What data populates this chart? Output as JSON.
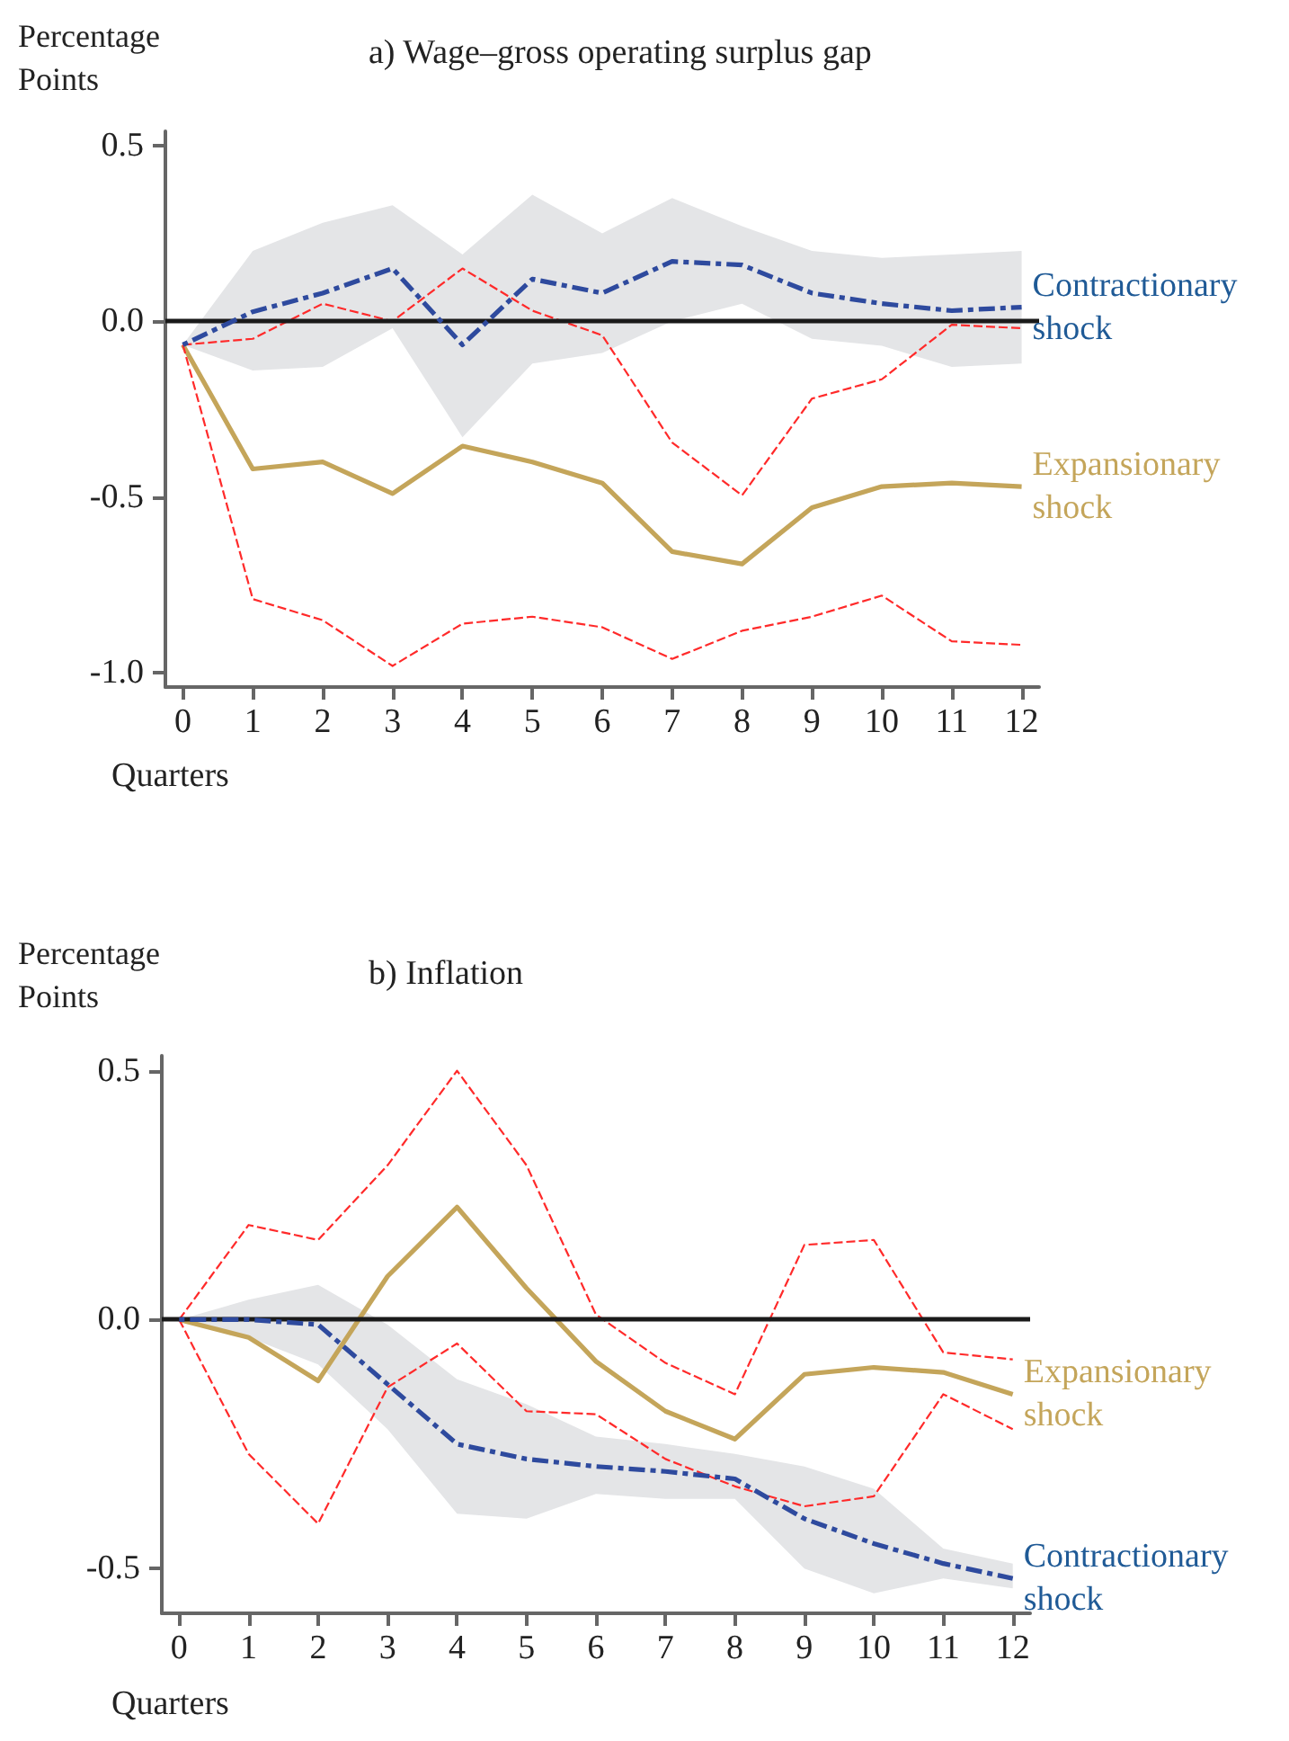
{
  "chart_data": [
    {
      "type": "line",
      "title": "a) Wage–gross operating surplus gap",
      "ylabel": "Percentage Points",
      "xlabel": "Quarters",
      "x": [
        0,
        1,
        2,
        3,
        4,
        5,
        6,
        7,
        8,
        9,
        10,
        11,
        12
      ],
      "xlim": [
        -0.25,
        12.25
      ],
      "xticks": [
        0,
        1,
        2,
        3,
        4,
        5,
        6,
        7,
        8,
        9,
        10,
        11,
        12
      ],
      "ylim": [
        -1.04,
        0.54
      ],
      "yticks": [
        {
          "value": -1,
          "label": "-1.0"
        },
        {
          "value": -0.5,
          "label": "-0.5"
        },
        {
          "value": 0,
          "label": "0.0"
        },
        {
          "value": 0.5,
          "label": "0.5"
        }
      ],
      "grid": false,
      "legend": false,
      "marker": "none",
      "ref_lines": [
        {
          "axis": "y",
          "value": 0,
          "color": "#1a1a1a"
        }
      ],
      "series": [
        {
          "color": "#ff2a2a",
          "line_style": "dashed",
          "values": [
            -0.067,
            -0.05,
            0.05,
            0,
            0.15,
            0.03,
            -0.04,
            -0.345,
            -0.495,
            -0.22,
            -0.165,
            -0.01,
            -0.02
          ]
        },
        {
          "color": "#ff2a2a",
          "line_style": "dashed",
          "values": [
            -0.067,
            -0.79,
            -0.85,
            -0.98,
            -0.86,
            -0.84,
            -0.87,
            -0.96,
            -0.88,
            -0.84,
            -0.78,
            -0.91,
            -0.92
          ]
        },
        {
          "name": "Expansionary shock",
          "color": "#c4a55a",
          "line_style": "solid",
          "values": [
            -0.067,
            -0.42,
            -0.4,
            -0.49,
            -0.355,
            -0.4,
            -0.46,
            -0.655,
            -0.69,
            -0.53,
            -0.47,
            -0.46,
            -0.47
          ]
        },
        {
          "name": "Contractionary shock",
          "color": "#2e4a9e",
          "line_style": "dashed",
          "values": [
            -0.067,
            0.027,
            0.08,
            0.15,
            -0.067,
            0.12,
            0.08,
            0.17,
            0.16,
            0.08,
            0.05,
            0.03,
            0.04
          ],
          "lower": [
            -0.067,
            -0.14,
            -0.13,
            -0.02,
            -0.33,
            -0.12,
            -0.09,
            0,
            0.05,
            -0.05,
            -0.07,
            -0.13,
            -0.12
          ],
          "upper": [
            -0.067,
            0.2,
            0.28,
            0.33,
            0.19,
            0.36,
            0.25,
            0.35,
            0.27,
            0.2,
            0.18,
            0.19,
            0.2
          ]
        }
      ]
    },
    {
      "type": "line",
      "title": "b) Inflation",
      "ylabel": "Percentage Points",
      "xlabel": "Quarters",
      "x": [
        0,
        1,
        2,
        3,
        4,
        5,
        6,
        7,
        8,
        9,
        10,
        11,
        12
      ],
      "xlim": [
        -0.25,
        12.25
      ],
      "xticks": [
        0,
        1,
        2,
        3,
        4,
        5,
        6,
        7,
        8,
        9,
        10,
        11,
        12
      ],
      "ylim": [
        -0.59,
        0.53
      ],
      "yticks": [
        {
          "value": -0.5,
          "label": "-0.5"
        },
        {
          "value": 0,
          "label": "0.0"
        },
        {
          "value": 0.5,
          "label": "0.5"
        }
      ],
      "grid": false,
      "legend": false,
      "marker": "none",
      "ref_lines": [
        {
          "axis": "y",
          "value": 0,
          "color": "#1a1a1a"
        }
      ],
      "series": [
        {
          "color": "#ff2a2a",
          "line_style": "dashed",
          "values": [
            0,
            0.19,
            0.16,
            0.31,
            0.5,
            0.31,
            0.01,
            -0.087,
            -0.15,
            0.15,
            0.16,
            -0.066,
            -0.08
          ]
        },
        {
          "color": "#ff2a2a",
          "line_style": "dashed",
          "values": [
            0,
            -0.27,
            -0.41,
            -0.136,
            -0.048,
            -0.184,
            -0.19,
            -0.28,
            -0.335,
            -0.375,
            -0.355,
            -0.15,
            -0.22
          ]
        },
        {
          "name": "Expansionary shock",
          "color": "#c4a55a",
          "line_style": "solid",
          "values": [
            0,
            -0.036,
            -0.123,
            0.087,
            0.226,
            0.063,
            -0.084,
            -0.184,
            -0.24,
            -0.11,
            -0.096,
            -0.106,
            -0.15
          ]
        },
        {
          "name": "Contractionary shock",
          "color": "#2e4a9e",
          "line_style": "dashed",
          "values": [
            0,
            0,
            -0.01,
            -0.13,
            -0.25,
            -0.28,
            -0.295,
            -0.305,
            -0.32,
            -0.4,
            -0.45,
            -0.49,
            -0.52
          ],
          "lower": [
            0,
            -0.036,
            -0.09,
            -0.22,
            -0.39,
            -0.4,
            -0.35,
            -0.36,
            -0.36,
            -0.5,
            -0.55,
            -0.52,
            -0.54
          ],
          "upper": [
            0,
            0.04,
            0.07,
            -0.01,
            -0.12,
            -0.17,
            -0.235,
            -0.25,
            -0.27,
            -0.295,
            -0.34,
            -0.46,
            -0.49
          ]
        }
      ]
    }
  ]
}
